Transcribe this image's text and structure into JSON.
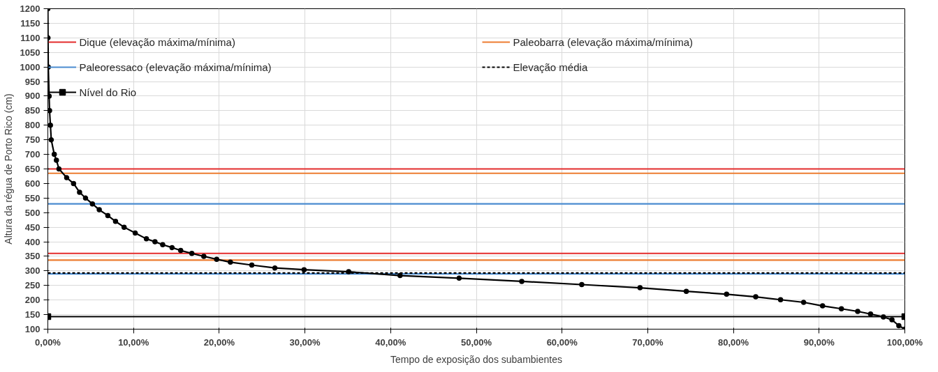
{
  "chart_data": {
    "type": "line",
    "xlabel": "Tempo de exposição dos subambientes",
    "ylabel": "Altura da régua de Porto Rico (cm)",
    "xlim": [
      0,
      100
    ],
    "ylim": [
      100,
      1200
    ],
    "xticks": [
      {
        "value": 0,
        "label": "0,00%"
      },
      {
        "value": 10,
        "label": "10,00%"
      },
      {
        "value": 20,
        "label": "20,00%"
      },
      {
        "value": 30,
        "label": "30,00%"
      },
      {
        "value": 40,
        "label": "40,00%"
      },
      {
        "value": 50,
        "label": "50,00%"
      },
      {
        "value": 60,
        "label": "60,00%"
      },
      {
        "value": 70,
        "label": "70,00%"
      },
      {
        "value": 80,
        "label": "80,00%"
      },
      {
        "value": 90,
        "label": "90,00%"
      },
      {
        "value": 100,
        "label": "100,00%"
      }
    ],
    "yticks": [
      100,
      150,
      200,
      250,
      300,
      350,
      400,
      450,
      500,
      550,
      600,
      650,
      700,
      750,
      800,
      850,
      900,
      950,
      1000,
      1050,
      1100,
      1150,
      1200
    ],
    "grid": true,
    "legend": "top",
    "series": [
      {
        "name": "Dique (elevação máxima/mínima)",
        "color": "#e32b2b",
        "x": [
          0,
          100
        ],
        "values": [
          650,
          650
        ],
        "marker": "none",
        "line_style": "solid"
      },
      {
        "color": "#e32b2b",
        "x": [
          0,
          100
        ],
        "values": [
          360,
          360
        ],
        "marker": "none",
        "line_style": "solid"
      },
      {
        "name": "Paleobarra (elevação máxima/mínima)",
        "color": "#ed7d31",
        "x": [
          0,
          100
        ],
        "values": [
          635,
          635
        ],
        "marker": "none",
        "line_style": "solid"
      },
      {
        "color": "#ed7d31",
        "x": [
          0,
          100
        ],
        "values": [
          337,
          337
        ],
        "marker": "none",
        "line_style": "solid"
      },
      {
        "name": "Paleoressaco (elevação máxima/mínima)",
        "color": "#4a8bd0",
        "x": [
          0,
          100
        ],
        "values": [
          530,
          530
        ],
        "marker": "none",
        "line_style": "solid"
      },
      {
        "color": "#4a8bd0",
        "x": [
          0,
          100
        ],
        "values": [
          290,
          290
        ],
        "marker": "none",
        "line_style": "solid"
      },
      {
        "name": "Elevação média",
        "color": "#000000",
        "x": [
          0,
          100
        ],
        "values": [
          293,
          293
        ],
        "marker": "none",
        "line_style": "dashed"
      },
      {
        "name": "Nível do Rio",
        "color": "#000000",
        "x": [
          0,
          100
        ],
        "values": [
          143,
          143
        ],
        "marker": "square",
        "line_style": "solid"
      },
      {
        "color": "#000000",
        "marker": "circle",
        "line_style": "solid",
        "x": [
          0,
          0.02,
          0.05,
          0.15,
          0.2,
          0.3,
          0.4,
          0.75,
          1.0,
          1.3,
          2.2,
          3.0,
          3.7,
          4.4,
          5.2,
          6.0,
          7.0,
          7.9,
          8.9,
          10.2,
          11.5,
          12.5,
          13.4,
          14.5,
          15.5,
          16.8,
          18.2,
          19.7,
          21.3,
          23.8,
          26.5,
          29.9,
          35.1,
          41.1,
          48,
          55.3,
          62.3,
          69.1,
          74.5,
          79.2,
          82.6,
          85.5,
          88.2,
          90.4,
          92.6,
          94.5,
          96,
          97.5,
          98.5,
          99.3,
          100
        ],
        "values": [
          1200,
          1100,
          1000,
          900,
          850,
          800,
          750,
          700,
          680,
          650,
          620,
          600,
          570,
          550,
          530,
          510,
          490,
          470,
          450,
          430,
          410,
          400,
          390,
          380,
          370,
          360,
          350,
          340,
          330,
          320,
          310,
          304,
          297,
          284,
          275,
          264,
          253,
          242,
          230,
          220,
          211,
          201,
          192,
          180,
          170,
          161,
          152,
          142,
          132,
          112,
          100
        ]
      }
    ]
  }
}
